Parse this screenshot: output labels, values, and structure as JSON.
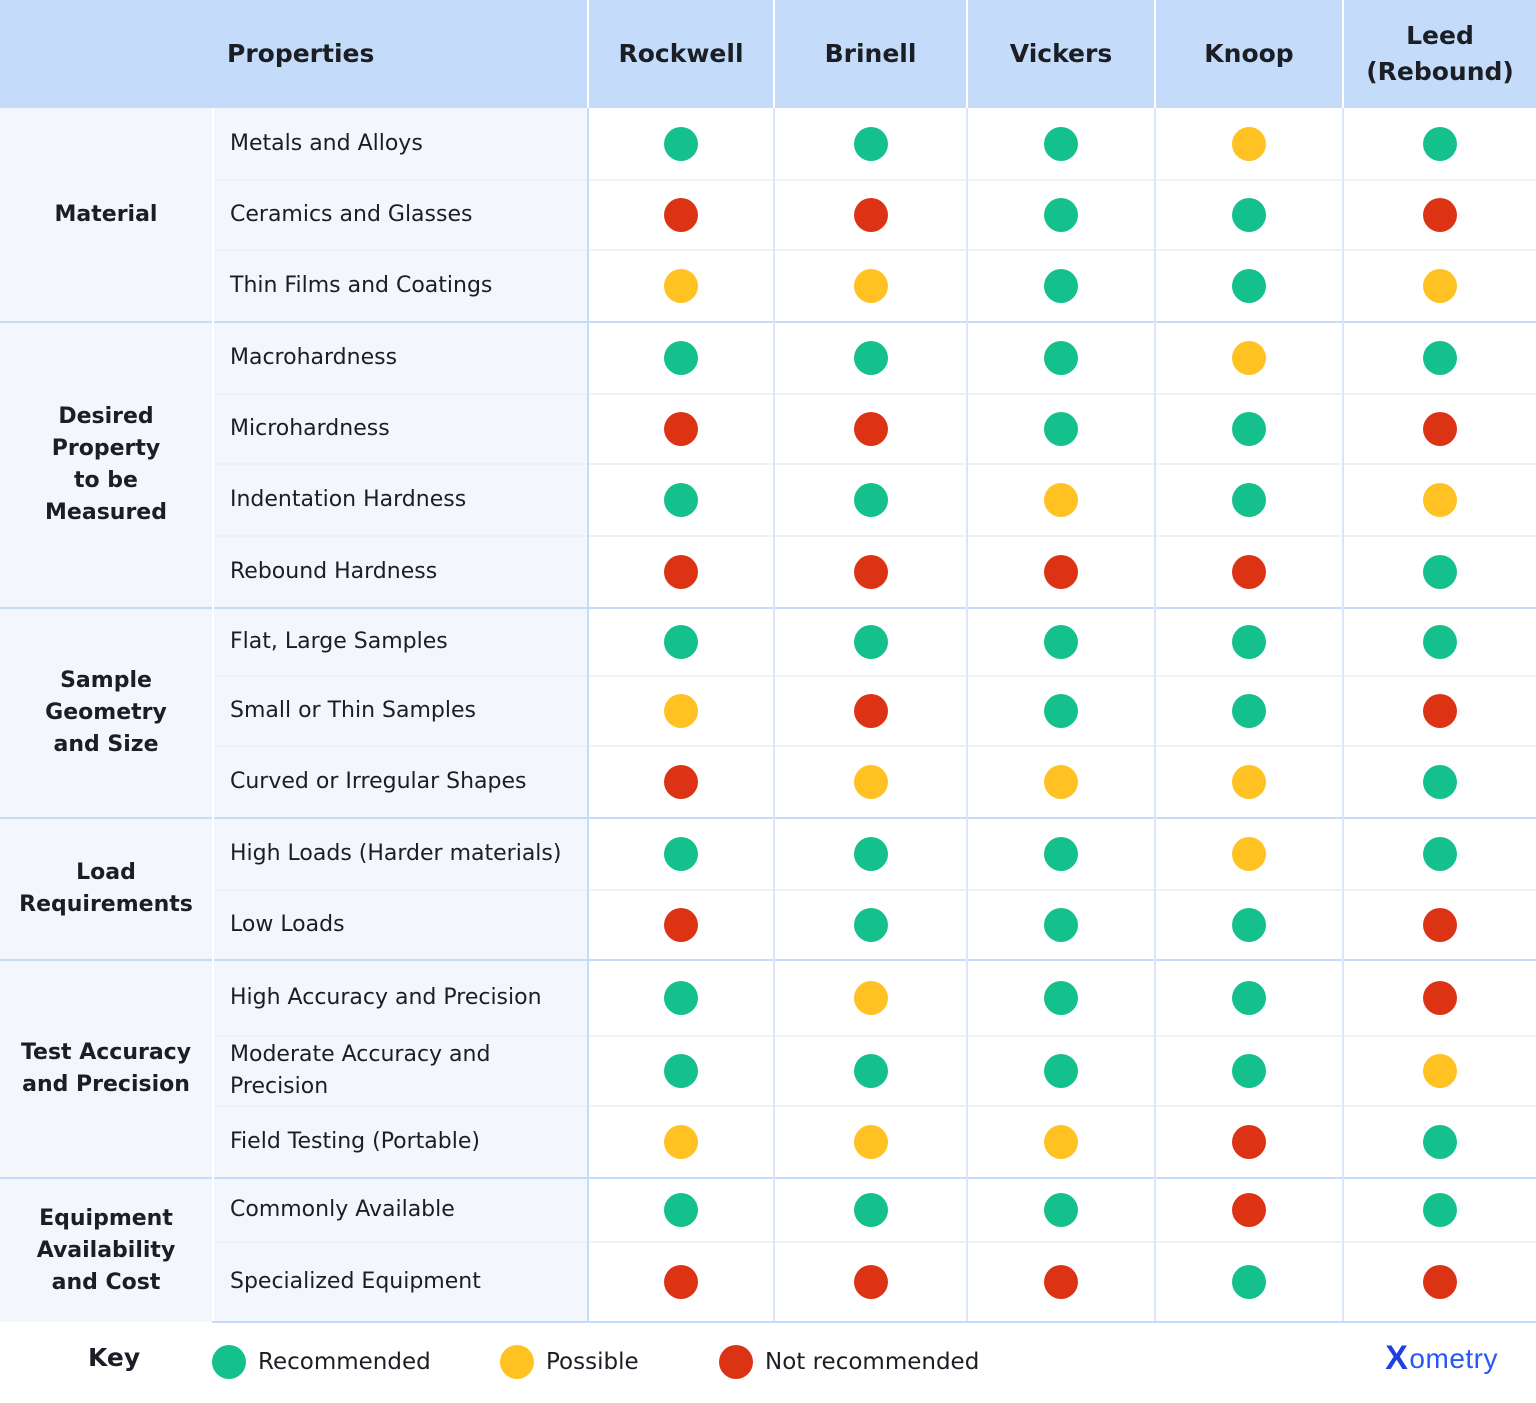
{
  "colors": {
    "recommended": "#14c08b",
    "possible": "#ffc222",
    "not_recommended": "#dd3315",
    "header_bg": "#c4dcf9",
    "row_bg": "#f3f7fd",
    "brand": "#2558f5"
  },
  "header": {
    "properties": "Properties",
    "methods": [
      "Rockwell",
      "Brinell",
      "Vickers",
      "Knoop",
      "Leed\n(Rebound)"
    ]
  },
  "groups": [
    {
      "label": "Material",
      "rows": [
        {
          "property": "Metals and Alloys",
          "ratings": [
            "recommended",
            "recommended",
            "recommended",
            "possible",
            "recommended"
          ]
        },
        {
          "property": "Ceramics and Glasses",
          "ratings": [
            "not_recommended",
            "not_recommended",
            "recommended",
            "recommended",
            "not_recommended"
          ]
        },
        {
          "property": "Thin Films and Coatings",
          "ratings": [
            "possible",
            "possible",
            "recommended",
            "recommended",
            "possible"
          ]
        }
      ]
    },
    {
      "label": "Desired\nProperty\nto be\nMeasured",
      "rows": [
        {
          "property": "Macrohardness",
          "ratings": [
            "recommended",
            "recommended",
            "recommended",
            "possible",
            "recommended"
          ]
        },
        {
          "property": "Microhardness",
          "ratings": [
            "not_recommended",
            "not_recommended",
            "recommended",
            "recommended",
            "not_recommended"
          ]
        },
        {
          "property": "Indentation Hardness",
          "ratings": [
            "recommended",
            "recommended",
            "possible",
            "recommended",
            "possible"
          ]
        },
        {
          "property": "Rebound Hardness",
          "ratings": [
            "not_recommended",
            "not_recommended",
            "not_recommended",
            "not_recommended",
            "recommended"
          ]
        }
      ]
    },
    {
      "label": "Sample\nGeometry\nand Size",
      "rows": [
        {
          "property": "Flat, Large Samples",
          "ratings": [
            "recommended",
            "recommended",
            "recommended",
            "recommended",
            "recommended"
          ]
        },
        {
          "property": "Small or Thin Samples",
          "ratings": [
            "possible",
            "not_recommended",
            "recommended",
            "recommended",
            "not_recommended"
          ]
        },
        {
          "property": "Curved or Irregular Shapes",
          "ratings": [
            "not_recommended",
            "possible",
            "possible",
            "possible",
            "recommended"
          ]
        }
      ]
    },
    {
      "label": "Load\nRequirements",
      "rows": [
        {
          "property": "High Loads (Harder materials)",
          "ratings": [
            "recommended",
            "recommended",
            "recommended",
            "possible",
            "recommended"
          ]
        },
        {
          "property": "Low Loads",
          "ratings": [
            "not_recommended",
            "recommended",
            "recommended",
            "recommended",
            "not_recommended"
          ]
        }
      ]
    },
    {
      "label": "Test Accuracy\nand Precision",
      "rows": [
        {
          "property": "High Accuracy and Precision",
          "ratings": [
            "recommended",
            "possible",
            "recommended",
            "recommended",
            "not_recommended"
          ]
        },
        {
          "property": "Moderate Accuracy and Precision",
          "ratings": [
            "recommended",
            "recommended",
            "recommended",
            "recommended",
            "possible"
          ]
        },
        {
          "property": "Field Testing (Portable)",
          "ratings": [
            "possible",
            "possible",
            "possible",
            "not_recommended",
            "recommended"
          ]
        }
      ]
    },
    {
      "label": "Equipment\nAvailability\nand Cost",
      "rows": [
        {
          "property": "Commonly Available",
          "ratings": [
            "recommended",
            "recommended",
            "recommended",
            "not_recommended",
            "recommended"
          ]
        },
        {
          "property": "Specialized Equipment",
          "ratings": [
            "not_recommended",
            "not_recommended",
            "not_recommended",
            "recommended",
            "not_recommended"
          ]
        }
      ]
    }
  ],
  "legend": {
    "title": "Key",
    "recommended": "Recommended",
    "possible": "Possible",
    "not_recommended": "Not recommended"
  },
  "brand": {
    "mark": "X",
    "name": "ometry"
  }
}
